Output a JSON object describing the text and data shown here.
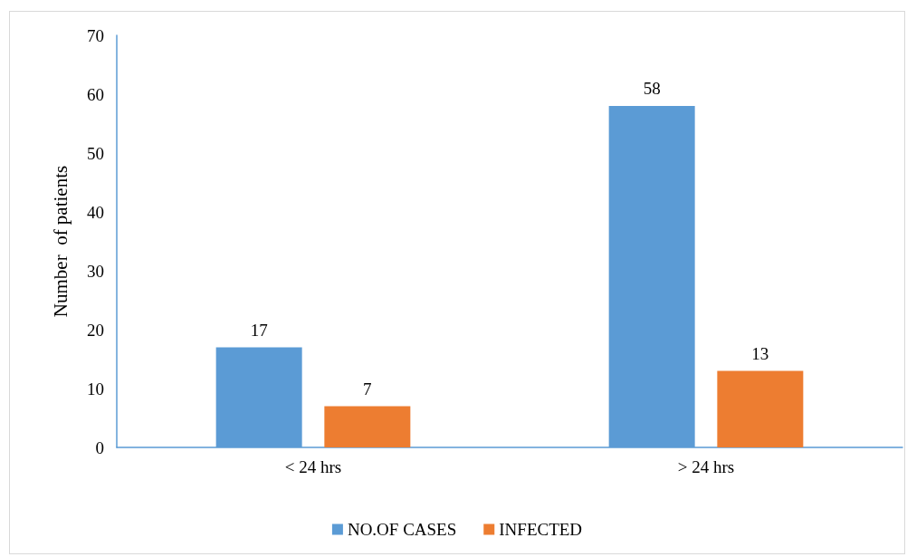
{
  "chart_data": {
    "type": "bar",
    "ylabel": "Number  of patients",
    "categories": [
      "< 24 hrs",
      "> 24 hrs"
    ],
    "series": [
      {
        "name": "NO.OF CASES",
        "color": "#5b9bd5",
        "values": [
          17,
          58
        ]
      },
      {
        "name": "INFECTED",
        "color": "#ed7d31",
        "values": [
          7,
          13
        ]
      }
    ],
    "ylim": [
      0,
      70
    ],
    "yticks": [
      0,
      10,
      20,
      30,
      40,
      50,
      60,
      70
    ],
    "grid": false,
    "legend": "bottom",
    "data_labels": true
  }
}
